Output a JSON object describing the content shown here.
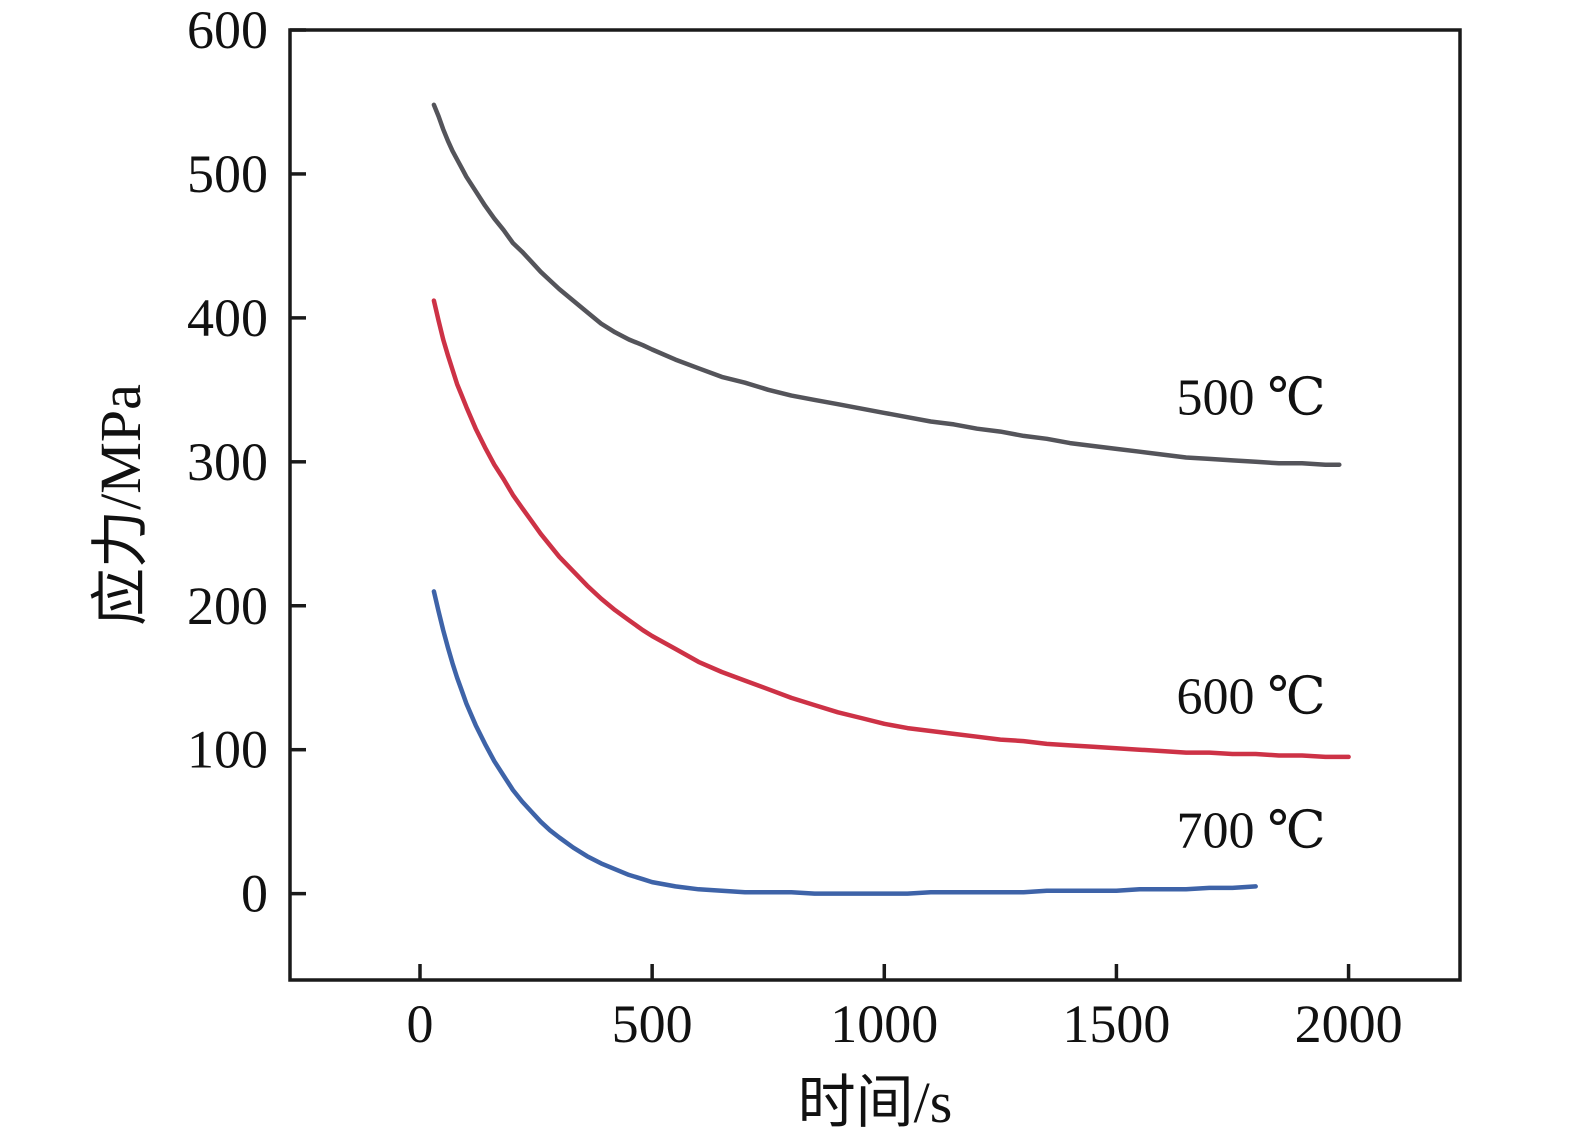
{
  "chart_data": {
    "type": "line",
    "title": "",
    "xlabel": "时间/s",
    "ylabel": "应力/MPa",
    "xlim": [
      -280,
      2240
    ],
    "ylim": [
      -60,
      600
    ],
    "x_ticks": [
      0,
      500,
      1000,
      1500,
      2000
    ],
    "y_ticks": [
      0,
      100,
      200,
      300,
      400,
      500,
      600
    ],
    "grid": false,
    "legend_position": "inline-annotations-right",
    "axis_color": "#1a1a1a",
    "series": [
      {
        "name": "500 ℃",
        "color": "#54545a",
        "points": [
          [
            30,
            548
          ],
          [
            40,
            540
          ],
          [
            50,
            531
          ],
          [
            60,
            523
          ],
          [
            70,
            516
          ],
          [
            80,
            510
          ],
          [
            90,
            504
          ],
          [
            100,
            498
          ],
          [
            120,
            488
          ],
          [
            140,
            478
          ],
          [
            160,
            469
          ],
          [
            180,
            461
          ],
          [
            200,
            452
          ],
          [
            220,
            446
          ],
          [
            240,
            439
          ],
          [
            260,
            432
          ],
          [
            280,
            426
          ],
          [
            300,
            420
          ],
          [
            330,
            412
          ],
          [
            360,
            404
          ],
          [
            390,
            396
          ],
          [
            420,
            390
          ],
          [
            450,
            385
          ],
          [
            480,
            381
          ],
          [
            500,
            378
          ],
          [
            550,
            371
          ],
          [
            600,
            365
          ],
          [
            650,
            359
          ],
          [
            700,
            355
          ],
          [
            750,
            350
          ],
          [
            800,
            346
          ],
          [
            850,
            343
          ],
          [
            900,
            340
          ],
          [
            950,
            337
          ],
          [
            1000,
            334
          ],
          [
            1050,
            331
          ],
          [
            1100,
            328
          ],
          [
            1150,
            326
          ],
          [
            1200,
            323
          ],
          [
            1250,
            321
          ],
          [
            1300,
            318
          ],
          [
            1350,
            316
          ],
          [
            1400,
            313
          ],
          [
            1450,
            311
          ],
          [
            1500,
            309
          ],
          [
            1550,
            307
          ],
          [
            1600,
            305
          ],
          [
            1650,
            303
          ],
          [
            1700,
            302
          ],
          [
            1750,
            301
          ],
          [
            1800,
            300
          ],
          [
            1850,
            299
          ],
          [
            1900,
            299
          ],
          [
            1950,
            298
          ],
          [
            1980,
            298
          ]
        ]
      },
      {
        "name": "600 ℃",
        "color": "#cd3246",
        "points": [
          [
            30,
            412
          ],
          [
            40,
            398
          ],
          [
            50,
            385
          ],
          [
            60,
            374
          ],
          [
            70,
            364
          ],
          [
            80,
            354
          ],
          [
            90,
            346
          ],
          [
            100,
            338
          ],
          [
            120,
            323
          ],
          [
            140,
            310
          ],
          [
            160,
            298
          ],
          [
            180,
            288
          ],
          [
            200,
            277
          ],
          [
            220,
            268
          ],
          [
            240,
            259
          ],
          [
            260,
            250
          ],
          [
            280,
            242
          ],
          [
            300,
            234
          ],
          [
            330,
            224
          ],
          [
            360,
            214
          ],
          [
            390,
            205
          ],
          [
            420,
            197
          ],
          [
            450,
            190
          ],
          [
            480,
            183
          ],
          [
            500,
            179
          ],
          [
            550,
            170
          ],
          [
            600,
            161
          ],
          [
            650,
            154
          ],
          [
            700,
            148
          ],
          [
            750,
            142
          ],
          [
            800,
            136
          ],
          [
            850,
            131
          ],
          [
            900,
            126
          ],
          [
            950,
            122
          ],
          [
            1000,
            118
          ],
          [
            1050,
            115
          ],
          [
            1100,
            113
          ],
          [
            1150,
            111
          ],
          [
            1200,
            109
          ],
          [
            1250,
            107
          ],
          [
            1300,
            106
          ],
          [
            1350,
            104
          ],
          [
            1400,
            103
          ],
          [
            1450,
            102
          ],
          [
            1500,
            101
          ],
          [
            1550,
            100
          ],
          [
            1600,
            99
          ],
          [
            1650,
            98
          ],
          [
            1700,
            98
          ],
          [
            1750,
            97
          ],
          [
            1800,
            97
          ],
          [
            1850,
            96
          ],
          [
            1900,
            96
          ],
          [
            1950,
            95
          ],
          [
            2000,
            95
          ]
        ]
      },
      {
        "name": "700 ℃",
        "color": "#3e63a8",
        "points": [
          [
            30,
            210
          ],
          [
            40,
            196
          ],
          [
            50,
            183
          ],
          [
            60,
            171
          ],
          [
            70,
            160
          ],
          [
            80,
            150
          ],
          [
            90,
            141
          ],
          [
            100,
            132
          ],
          [
            120,
            117
          ],
          [
            140,
            104
          ],
          [
            160,
            92
          ],
          [
            180,
            82
          ],
          [
            200,
            72
          ],
          [
            220,
            64
          ],
          [
            240,
            57
          ],
          [
            260,
            50
          ],
          [
            280,
            44
          ],
          [
            300,
            39
          ],
          [
            330,
            32
          ],
          [
            360,
            26
          ],
          [
            390,
            21
          ],
          [
            420,
            17
          ],
          [
            450,
            13
          ],
          [
            480,
            10
          ],
          [
            500,
            8
          ],
          [
            550,
            5
          ],
          [
            600,
            3
          ],
          [
            650,
            2
          ],
          [
            700,
            1
          ],
          [
            750,
            1
          ],
          [
            800,
            1
          ],
          [
            850,
            0
          ],
          [
            900,
            0
          ],
          [
            950,
            0
          ],
          [
            1000,
            0
          ],
          [
            1050,
            0
          ],
          [
            1100,
            1
          ],
          [
            1150,
            1
          ],
          [
            1200,
            1
          ],
          [
            1250,
            1
          ],
          [
            1300,
            1
          ],
          [
            1350,
            2
          ],
          [
            1400,
            2
          ],
          [
            1450,
            2
          ],
          [
            1500,
            2
          ],
          [
            1550,
            3
          ],
          [
            1600,
            3
          ],
          [
            1650,
            3
          ],
          [
            1700,
            4
          ],
          [
            1750,
            4
          ],
          [
            1800,
            5
          ]
        ]
      }
    ],
    "annotations": [
      {
        "text": "500 ℃",
        "x": 1790,
        "y": 333
      },
      {
        "text": "600 ℃",
        "x": 1790,
        "y": 125
      },
      {
        "text": "700 ℃",
        "x": 1790,
        "y": 32
      }
    ]
  }
}
